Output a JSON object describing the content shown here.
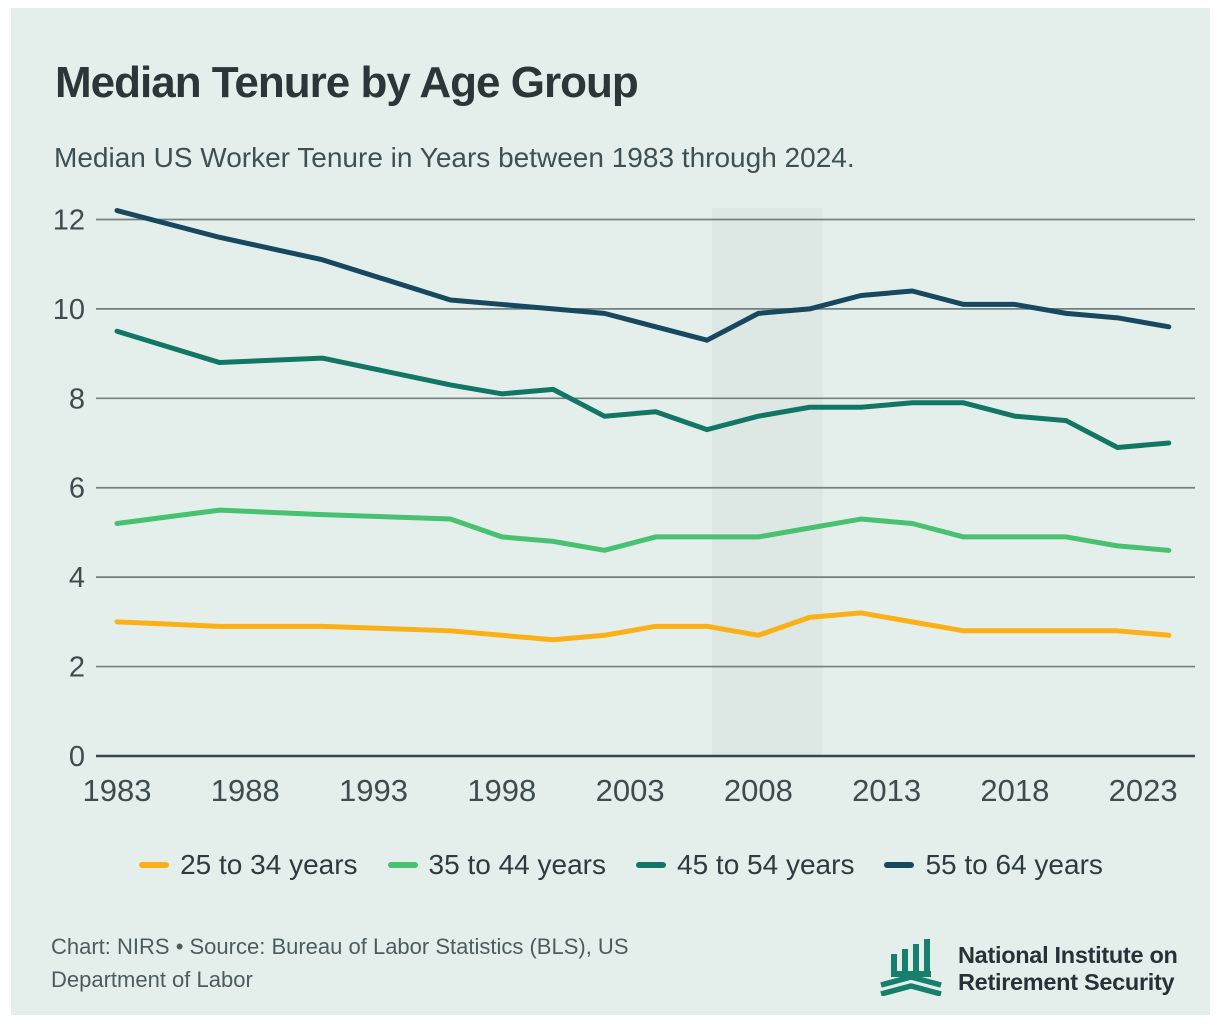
{
  "chart_data": {
    "type": "line",
    "title": "Median Tenure by Age Group",
    "subtitle": "Median US Worker Tenure in Years between 1983 through 2024.",
    "x": [
      1983,
      1987,
      1991,
      1996,
      1998,
      2000,
      2002,
      2004,
      2006,
      2008,
      2010,
      2012,
      2014,
      2016,
      2018,
      2020,
      2022,
      2024
    ],
    "series": [
      {
        "name": "25 to 34 years",
        "color": "#fbb016",
        "values": [
          3.0,
          2.9,
          2.9,
          2.8,
          2.7,
          2.6,
          2.7,
          2.9,
          2.9,
          2.7,
          3.1,
          3.2,
          3.0,
          2.8,
          2.8,
          2.8,
          2.8,
          2.7
        ]
      },
      {
        "name": "35 to 44 years",
        "color": "#48c170",
        "values": [
          5.2,
          5.5,
          5.4,
          5.3,
          4.9,
          4.8,
          4.6,
          4.9,
          4.9,
          4.9,
          5.1,
          5.3,
          5.2,
          4.9,
          4.9,
          4.9,
          4.7,
          4.6
        ]
      },
      {
        "name": "45 to 54 years",
        "color": "#117764",
        "values": [
          9.5,
          8.8,
          8.9,
          8.3,
          8.1,
          8.2,
          7.6,
          7.7,
          7.3,
          7.6,
          7.8,
          7.8,
          7.9,
          7.9,
          7.6,
          7.5,
          6.9,
          7.0
        ]
      },
      {
        "name": "55 to 64 years",
        "color": "#17485f",
        "values": [
          12.2,
          11.6,
          11.1,
          10.2,
          10.1,
          10.0,
          9.9,
          9.6,
          9.3,
          9.9,
          10.0,
          10.3,
          10.4,
          10.1,
          10.1,
          9.9,
          9.8,
          9.6
        ]
      }
    ],
    "xticks": [
      1983,
      1988,
      1993,
      1998,
      2003,
      2008,
      2013,
      2018,
      2023
    ],
    "yticks": [
      0,
      2,
      4,
      6,
      8,
      10,
      12
    ],
    "xlim": [
      1983,
      2024
    ],
    "ylim": [
      0,
      12.3
    ],
    "grid": "horizontal",
    "legend_position": "bottom-center",
    "highlight_region": {
      "x_start": 2006.2,
      "x_end": 2010.5,
      "color": "#dde7e3"
    }
  },
  "footer": {
    "credit": "Chart: NIRS • Source: Bureau of Labor Statistics (BLS), US Department of Labor"
  },
  "logo": {
    "line1": "National Institute on",
    "line2": "Retirement Security"
  },
  "colors": {
    "page_background": "#ffffff",
    "card_background": "#e4efec",
    "gridline": "#72807e",
    "axis_baseline": "#37474f",
    "tick_text": "#3e4c4d",
    "title_text": "#2b3638",
    "subtitle_text": "#3f5052",
    "footer_text": "#4c5c5d",
    "logo_teal": "#17806c"
  }
}
